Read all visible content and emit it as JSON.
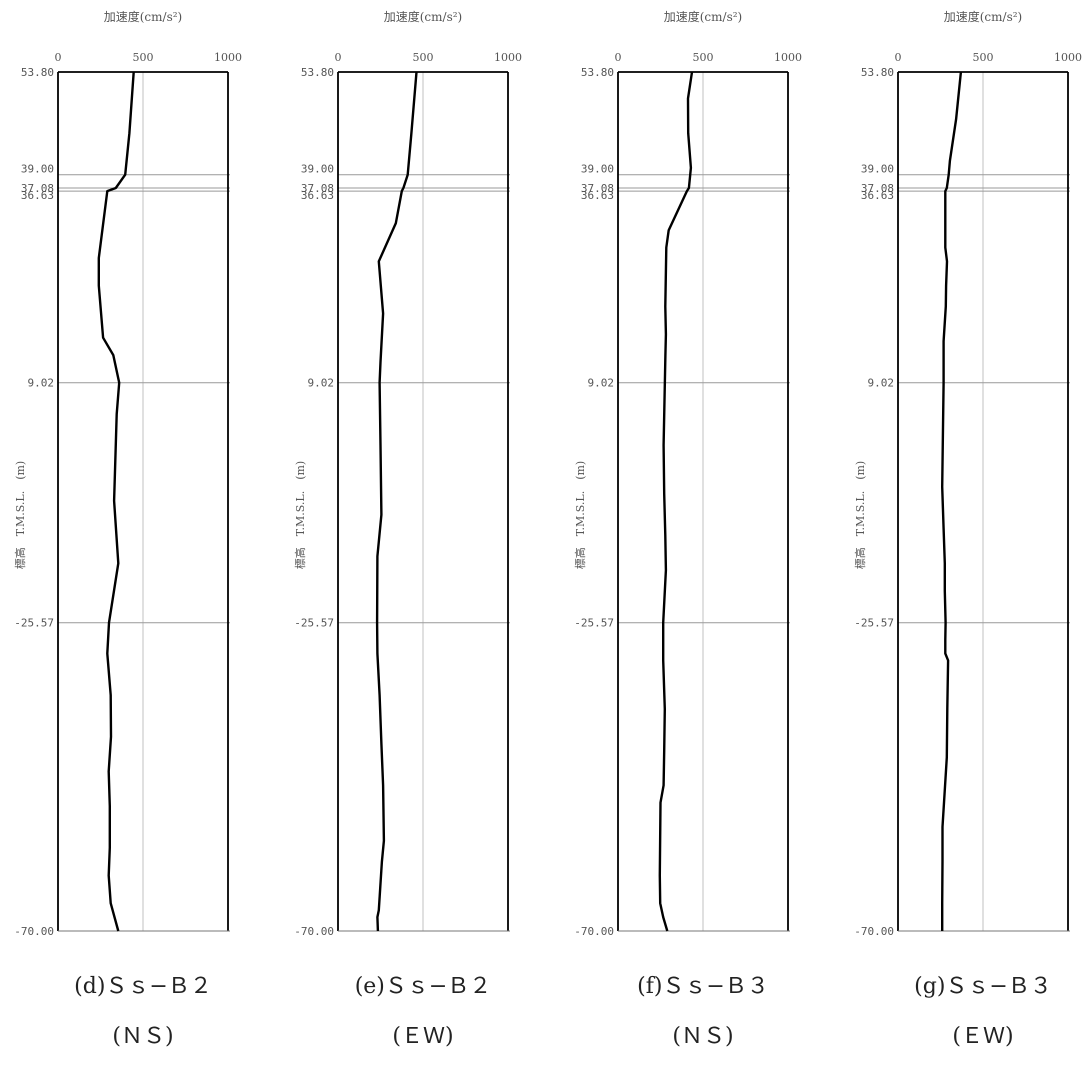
{
  "figure": {
    "x_axis_label": "加速度(cm/s²)",
    "y_axis_label": "標高　T.M.S.L.　(m)"
  },
  "chart_data": [
    {
      "type": "line",
      "caption": "(d)Ｓｓ−Ｂ２",
      "direction": "(ＮＳ)",
      "xlabel": "加速度(cm/s²)",
      "ylabel": "標高　T.M.S.L.　(m)",
      "xlim": [
        0,
        1000
      ],
      "ylim": [
        -70.0,
        53.8
      ],
      "x_ticks": [
        "0",
        "500",
        "1000"
      ],
      "y_ticks": [
        "53.80",
        "39.00",
        "37.08",
        "36.63",
        "9.02",
        "-25.57",
        "-70.00"
      ],
      "series": [
        {
          "x": [
            445,
            420,
            395,
            340,
            290,
            240,
            240,
            265,
            325,
            360,
            345,
            330,
            355,
            300,
            290,
            310,
            312,
            298,
            305,
            305,
            298,
            310,
            355
          ],
          "y": [
            53.8,
            45.0,
            39.0,
            37.08,
            36.63,
            27.0,
            23.0,
            15.5,
            13.0,
            9.02,
            4.5,
            -8.0,
            -17.0,
            -25.57,
            -30.0,
            -36.0,
            -42.0,
            -47.0,
            -52.0,
            -58.0,
            -62.0,
            -66.0,
            -70.0
          ]
        }
      ]
    },
    {
      "type": "line",
      "caption": "(e)Ｓｓ−Ｂ２",
      "direction": "(ＥＷ)",
      "xlabel": "加速度(cm/s²)",
      "ylabel": "標高　T.M.S.L.　(m)",
      "xlim": [
        0,
        1000
      ],
      "ylim": [
        -70.0,
        53.8
      ],
      "x_ticks": [
        "0",
        "500",
        "1000"
      ],
      "y_ticks": [
        "53.80",
        "39.00",
        "37.08",
        "36.63",
        "9.02",
        "-25.57",
        "-70.00"
      ],
      "series": [
        {
          "x": [
            462,
            432,
            410,
            385,
            375,
            340,
            240,
            265,
            250,
            245,
            250,
            255,
            232,
            230,
            232,
            245,
            255,
            265,
            270,
            258,
            240,
            232,
            235
          ],
          "y": [
            53.8,
            45.0,
            39.0,
            37.08,
            36.63,
            32.0,
            26.5,
            19.0,
            12.0,
            9.02,
            0.0,
            -10.0,
            -16.0,
            -25.57,
            -30.0,
            -36.0,
            -43.0,
            -49.0,
            -57.0,
            -60.0,
            -67.0,
            -68.0,
            -70.0
          ]
        }
      ]
    },
    {
      "type": "line",
      "caption": "(f)Ｓｓ−Ｂ３",
      "direction": "(ＮＳ)",
      "xlabel": "加速度(cm/s²)",
      "ylabel": "標高　T.M.S.L.　(m)",
      "xlim": [
        0,
        1000
      ],
      "ylim": [
        -70.0,
        53.8
      ],
      "x_ticks": [
        "0",
        "500",
        "1000"
      ],
      "y_ticks": [
        "53.80",
        "39.00",
        "37.08",
        "36.63",
        "9.02",
        "-25.57",
        "-70.00"
      ],
      "series": [
        {
          "x": [
            435,
            412,
            413,
            429,
            417,
            405,
            298,
            284,
            278,
            282,
            279,
            268,
            272,
            278,
            282,
            266,
            266,
            275,
            272,
            268,
            250,
            246,
            248,
            266,
            290
          ],
          "y": [
            53.8,
            50.0,
            45.0,
            40.0,
            37.08,
            36.63,
            31.0,
            28.5,
            20.0,
            16.0,
            13.0,
            0.0,
            -7.0,
            -13.0,
            -18.0,
            -25.57,
            -31.0,
            -38.0,
            -44.0,
            -49.0,
            -51.5,
            -62.0,
            -66.0,
            -68.0,
            -70.0
          ]
        }
      ]
    },
    {
      "type": "line",
      "caption": "(g)Ｓｓ−Ｂ３",
      "direction": "(ＥＷ)",
      "xlabel": "加速度(cm/s²)",
      "ylabel": "標高　T.M.S.L.　(m)",
      "xlim": [
        0,
        1000
      ],
      "ylim": [
        -70.0,
        53.8
      ],
      "x_ticks": [
        "0",
        "500",
        "1000"
      ],
      "y_ticks": [
        "53.80",
        "39.00",
        "37.08",
        "36.63",
        "9.02",
        "-25.57",
        "-70.00"
      ],
      "series": [
        {
          "x": [
            370,
            342,
            305,
            298,
            287,
            278,
            278,
            278,
            288,
            283,
            281,
            268,
            268,
            260,
            268,
            275,
            275,
            280,
            278,
            278,
            295,
            290,
            287,
            262,
            262,
            260,
            260
          ],
          "y": [
            53.8,
            47.0,
            41.0,
            39.0,
            37.08,
            36.63,
            32.0,
            28.5,
            26.5,
            23.0,
            20.0,
            15.0,
            9.02,
            -6.0,
            -12.0,
            -17.0,
            -21.0,
            -25.57,
            -28.0,
            -30.0,
            -31.0,
            -38.0,
            -45.0,
            -55.0,
            -60.0,
            -66.0,
            -70.0
          ]
        }
      ]
    }
  ]
}
